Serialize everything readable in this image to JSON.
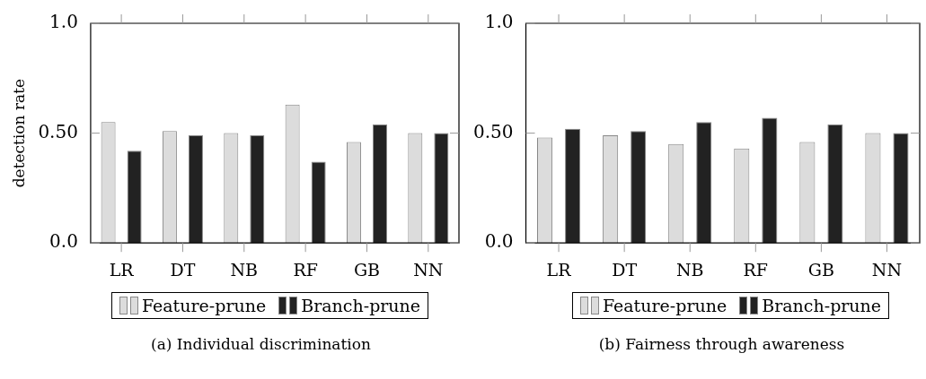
{
  "chart_data": [
    {
      "type": "bar",
      "ylabel": "detection rate",
      "categories": [
        "LR",
        "DT",
        "NB",
        "RF",
        "GB",
        "NN"
      ],
      "series": [
        {
          "name": "Feature-prune",
          "color": "#dcdcdc",
          "values": [
            0.55,
            0.51,
            0.5,
            0.63,
            0.46,
            0.5
          ]
        },
        {
          "name": "Branch-prune",
          "color": "#222222",
          "values": [
            0.42,
            0.49,
            0.49,
            0.37,
            0.54,
            0.5
          ]
        }
      ],
      "ylim": [
        0,
        1
      ],
      "yticks": [
        {
          "value": 0,
          "label": "0.0"
        },
        {
          "value": 0.5,
          "label": "0.50"
        },
        {
          "value": 1,
          "label": "1.0"
        }
      ],
      "legend": "bottom",
      "annotations": [
        "(a) Individual discrimination"
      ]
    },
    {
      "type": "bar",
      "categories": [
        "LR",
        "DT",
        "NB",
        "RF",
        "GB",
        "NN"
      ],
      "series": [
        {
          "name": "Feature-prune",
          "color": "#dcdcdc",
          "values": [
            0.48,
            0.49,
            0.45,
            0.43,
            0.46,
            0.5
          ]
        },
        {
          "name": "Branch-prune",
          "color": "#222222",
          "values": [
            0.52,
            0.51,
            0.55,
            0.57,
            0.54,
            0.5
          ]
        }
      ],
      "ylim": [
        0,
        1
      ],
      "yticks": [
        {
          "value": 0,
          "label": "0.0"
        },
        {
          "value": 0.5,
          "label": "0.50"
        },
        {
          "value": 1,
          "label": "1.0"
        }
      ],
      "legend": "bottom",
      "annotations": [
        "(b) Fairness through awareness"
      ]
    }
  ]
}
